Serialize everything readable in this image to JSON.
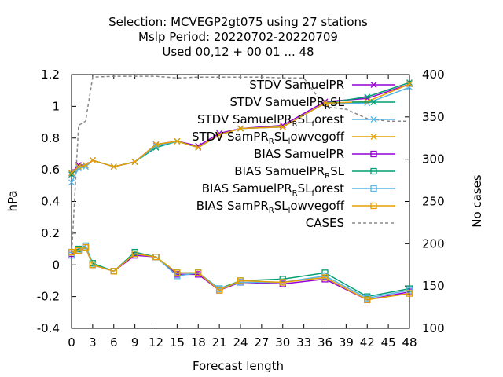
{
  "chart_data": {
    "type": "line",
    "title_lines": [
      "Selection: MCVEGP2gt075 using    27 stations",
      "Mslp   Period: 20220702-20220709",
      "Used  00,12  + 00 01 ... 48"
    ],
    "xlabel": "Forecast length",
    "ylabel": "hPa",
    "y2label": "No cases",
    "xlim": [
      0,
      48
    ],
    "ylim": [
      -0.4,
      1.2
    ],
    "y2lim": [
      100,
      400
    ],
    "x_ticks": [
      0,
      3,
      6,
      9,
      12,
      15,
      18,
      21,
      24,
      27,
      30,
      33,
      36,
      39,
      42,
      45,
      48
    ],
    "y_ticks": [
      "-0.4",
      "-0.2",
      "0",
      "0.2",
      "0.4",
      "0.6",
      "0.8",
      "1",
      "1.2"
    ],
    "y2_ticks": [
      "100",
      "150",
      "200",
      "250",
      "300",
      "350",
      "400"
    ],
    "legend_position": "top-right",
    "x": [
      0,
      1,
      2,
      3,
      6,
      9,
      12,
      15,
      18,
      21,
      24,
      30,
      36,
      42,
      48
    ],
    "series": [
      {
        "name": "STDV SamuelPR",
        "legend": {
          "main": "STDV SamuelPR"
        },
        "color": "#9400d3",
        "marker": "x",
        "axis": "left",
        "values": [
          0.58,
          0.63,
          0.63,
          0.66,
          0.62,
          0.65,
          0.76,
          0.78,
          0.75,
          0.83,
          0.86,
          0.88,
          1.03,
          1.05,
          1.14
        ]
      },
      {
        "name": "STDV SamuelPR_R SL",
        "legend": {
          "main": "STDV SamuelPR",
          "sub": "R",
          "tail": "SL"
        },
        "color": "#009e73",
        "marker": "x",
        "axis": "left",
        "values": [
          0.57,
          0.62,
          0.62,
          0.66,
          0.62,
          0.65,
          0.74,
          0.78,
          0.74,
          0.82,
          0.86,
          0.87,
          1.02,
          1.06,
          1.15
        ]
      },
      {
        "name": "STDV SamuelPR_R SL_f orest",
        "legend": {
          "main": "STDV SamuelPR",
          "sub": "R",
          "tail": "SL",
          "sub2": "f",
          "tail2": "orest"
        },
        "color": "#56b4e9",
        "marker": "x",
        "axis": "left",
        "values": [
          0.52,
          0.61,
          0.62,
          0.66,
          0.62,
          0.65,
          0.75,
          0.78,
          0.74,
          0.82,
          0.86,
          0.87,
          1.02,
          1.02,
          1.12
        ]
      },
      {
        "name": "STDV SamPR_R SL_l owvegoff",
        "legend": {
          "main": "STDV SamPR",
          "sub": "R",
          "tail": "SL",
          "sub2": "l",
          "tail2": "owvegoff"
        },
        "color": "#e69f00",
        "marker": "x",
        "axis": "left",
        "values": [
          0.58,
          0.62,
          0.63,
          0.66,
          0.62,
          0.65,
          0.76,
          0.78,
          0.74,
          0.82,
          0.86,
          0.87,
          1.02,
          1.03,
          1.14
        ]
      },
      {
        "name": "BIAS SamuelPR",
        "legend": {
          "main": "BIAS SamuelPR"
        },
        "color": "#9400d3",
        "marker": "square",
        "axis": "left",
        "values": [
          0.07,
          0.09,
          0.11,
          0.0,
          -0.04,
          0.06,
          0.05,
          -0.06,
          -0.06,
          -0.16,
          -0.11,
          -0.12,
          -0.09,
          -0.22,
          -0.17
        ]
      },
      {
        "name": "BIAS SamuelPR_R SL",
        "legend": {
          "main": "BIAS SamuelPR",
          "sub": "R",
          "tail": "SL"
        },
        "color": "#009e73",
        "marker": "square",
        "axis": "left",
        "values": [
          0.08,
          0.1,
          0.12,
          0.01,
          -0.04,
          0.08,
          0.05,
          -0.05,
          -0.05,
          -0.15,
          -0.1,
          -0.09,
          -0.05,
          -0.2,
          -0.15
        ]
      },
      {
        "name": "BIAS SamuelPR_R SL_f orest",
        "legend": {
          "main": "BIAS SamuelPR",
          "sub": "R",
          "tail": "SL",
          "sub2": "f",
          "tail2": "orest"
        },
        "color": "#56b4e9",
        "marker": "square",
        "axis": "left",
        "values": [
          0.06,
          0.09,
          0.12,
          0.0,
          -0.04,
          0.07,
          0.05,
          -0.07,
          -0.05,
          -0.15,
          -0.11,
          -0.11,
          -0.07,
          -0.21,
          -0.16
        ]
      },
      {
        "name": "BIAS SamPR_R SL_l owvegoff",
        "legend": {
          "main": "BIAS SamPR",
          "sub": "R",
          "tail": "SL",
          "sub2": "l",
          "tail2": "owvegoff"
        },
        "color": "#e69f00",
        "marker": "square",
        "axis": "left",
        "values": [
          0.08,
          0.09,
          0.11,
          0.0,
          -0.04,
          0.07,
          0.05,
          -0.05,
          -0.05,
          -0.16,
          -0.1,
          -0.11,
          -0.08,
          -0.22,
          -0.18
        ]
      }
    ],
    "cases": {
      "name": "CASES",
      "legend": {
        "main": "CASES"
      },
      "color": "#888888",
      "axis": "right",
      "dashed": true,
      "x": [
        0,
        1,
        2,
        3,
        6,
        9,
        12,
        15,
        18,
        21,
        24,
        27,
        30,
        33,
        36,
        39,
        42,
        45,
        48
      ],
      "values": [
        185,
        340,
        345,
        397,
        398,
        398,
        398,
        396,
        397,
        397,
        397,
        397,
        396,
        396,
        362,
        359,
        348,
        345,
        345
      ]
    }
  }
}
